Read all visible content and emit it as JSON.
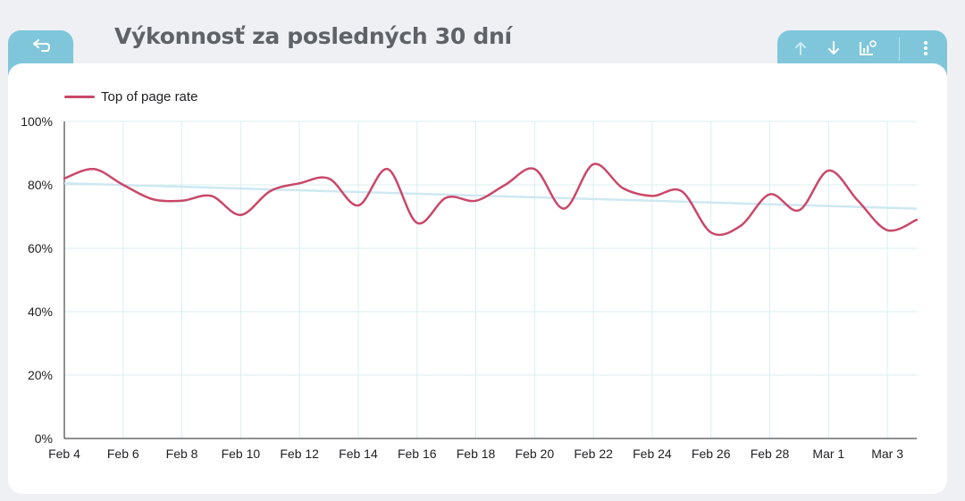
{
  "header": {
    "title": "Výkonnosť za posledných 30 dní"
  },
  "icons": {
    "back": "undo-arrow-icon",
    "sort_up": "arrow-up-icon",
    "sort_down": "arrow-down-icon",
    "explore": "chart-settings-icon",
    "more": "more-vertical-icon"
  },
  "colors": {
    "accent": "#7fc6da",
    "series": "#c9486a",
    "trend": "#cfe8f1",
    "grid": "#d8efee",
    "title": "#5f6368"
  },
  "chart_data": {
    "type": "line",
    "title": "",
    "xlabel": "",
    "ylabel": "",
    "ylim": [
      0,
      100
    ],
    "y_ticks": [
      "0%",
      "20%",
      "40%",
      "60%",
      "80%",
      "100%"
    ],
    "x_tick_labels": [
      "Feb 4",
      "Feb 6",
      "Feb 8",
      "Feb 10",
      "Feb 12",
      "Feb 14",
      "Feb 16",
      "Feb 18",
      "Feb 20",
      "Feb 22",
      "Feb 24",
      "Feb 26",
      "Feb 28",
      "Mar 1",
      "Mar 3"
    ],
    "x": [
      "Feb 4",
      "Feb 5",
      "Feb 6",
      "Feb 7",
      "Feb 8",
      "Feb 9",
      "Feb 10",
      "Feb 11",
      "Feb 12",
      "Feb 13",
      "Feb 14",
      "Feb 15",
      "Feb 16",
      "Feb 17",
      "Feb 18",
      "Feb 19",
      "Feb 20",
      "Feb 21",
      "Feb 22",
      "Feb 23",
      "Feb 24",
      "Feb 25",
      "Feb 26",
      "Feb 27",
      "Feb 28",
      "Feb 29",
      "Mar 1",
      "Mar 2",
      "Mar 3",
      "Mar 4"
    ],
    "series": [
      {
        "name": "Top of page rate",
        "values": [
          82,
          85,
          80,
          75.5,
          75,
          76.5,
          70.5,
          78,
          80.5,
          82,
          73.5,
          85,
          68,
          76,
          75,
          80,
          85,
          72.5,
          86.5,
          79,
          76.5,
          78,
          65,
          67,
          77,
          72,
          84.5,
          75,
          65.7,
          69
        ]
      }
    ],
    "trendline": [
      80.5,
      72.5
    ],
    "grid": true,
    "legend": "top-left"
  }
}
